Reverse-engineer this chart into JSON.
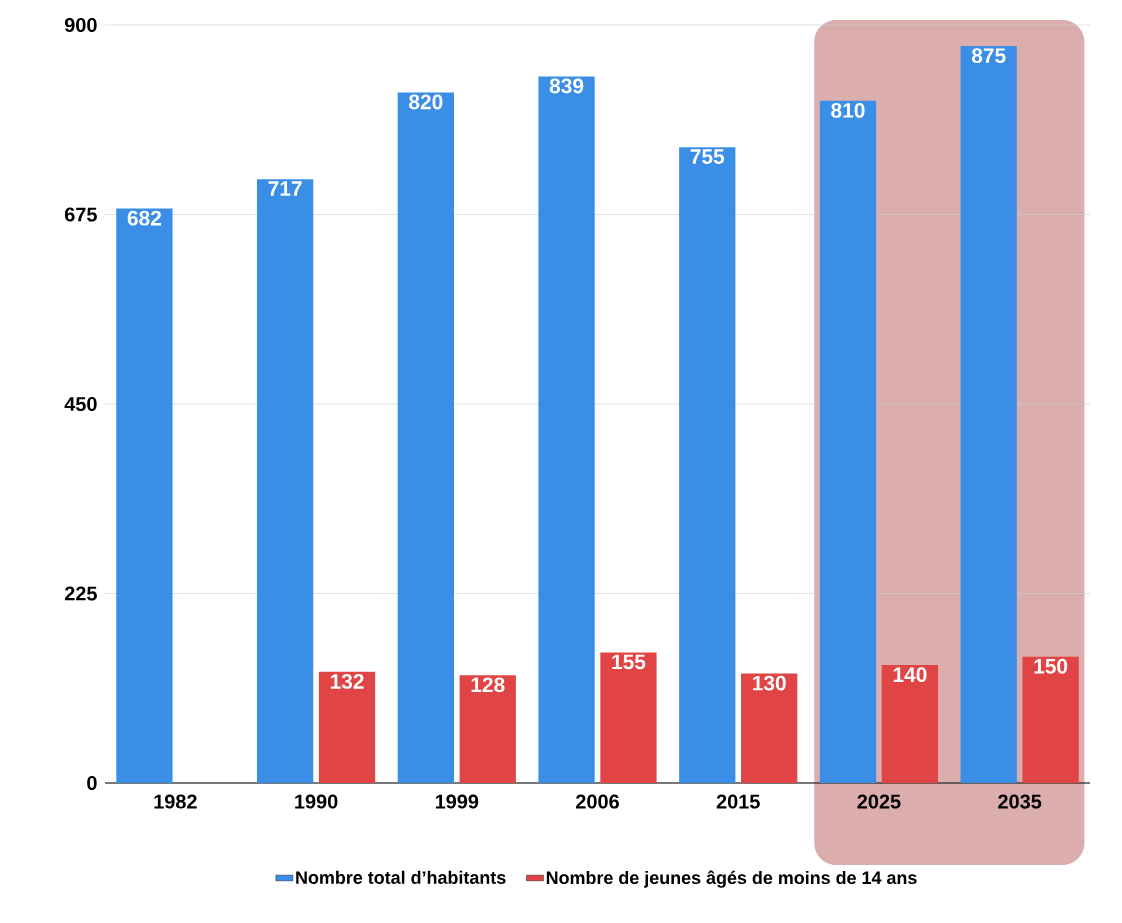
{
  "chart_data": {
    "type": "bar",
    "categories": [
      "1982",
      "1990",
      "1999",
      "2006",
      "2015",
      "2025",
      "2035"
    ],
    "series": [
      {
        "name": "Nombre total d’habitants",
        "color": "#3a8ee6",
        "values": [
          682,
          717,
          820,
          839,
          755,
          810,
          875
        ],
        "value_labels": [
          "682",
          "717",
          "820",
          "839",
          "755",
          "810",
          "875"
        ]
      },
      {
        "name": "Nombre de jeunes âgés de moins de 14 ans",
        "color": "#e04444",
        "values": [
          null,
          132,
          128,
          155,
          130,
          140,
          150
        ],
        "value_labels": [
          null,
          "132",
          "128",
          "155",
          "130",
          "140",
          "150"
        ]
      }
    ],
    "ylim": [
      0,
      900
    ],
    "yticks": [
      0,
      225,
      450,
      675,
      900
    ],
    "grid": "y",
    "legend": "bottom",
    "bands": [
      {
        "axis": "x",
        "from": "2025",
        "to": "2035",
        "color": "#dcadad"
      }
    ]
  }
}
